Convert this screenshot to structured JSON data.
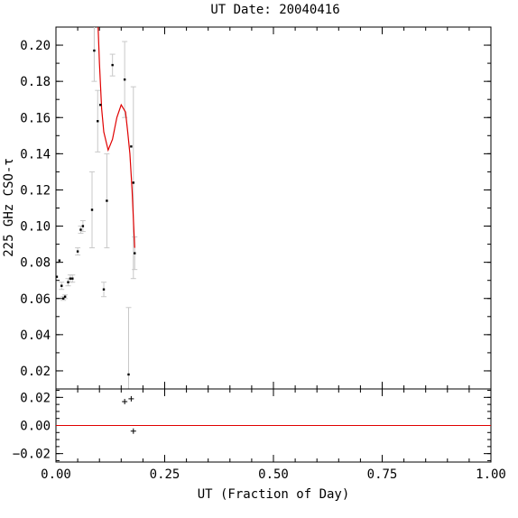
{
  "chart_data": [
    {
      "type": "scatter",
      "panel": "main",
      "title": "UT Date: 20040416",
      "xlabel": "",
      "ylabel": "225 GHz CSO-τ",
      "xlim": [
        0.0,
        1.0
      ],
      "ylim": [
        0.01,
        0.21
      ],
      "yticks": [
        0.02,
        0.04,
        0.06,
        0.08,
        0.1,
        0.12,
        0.14,
        0.16,
        0.18,
        0.2
      ],
      "ytick_labels": [
        "0.02",
        "0.04",
        "0.06",
        "0.08",
        "0.10",
        "0.12",
        "0.14",
        "0.16",
        "0.18",
        "0.20"
      ],
      "xticks": [
        0.0,
        0.25,
        0.5,
        0.75,
        1.0
      ],
      "series": [
        {
          "kind": "points_with_errorbars",
          "color": "#000000",
          "errorbar_color": "#c8c8c8",
          "points": [
            {
              "x": 0.002,
              "y": 0.072,
              "err": 0.0
            },
            {
              "x": 0.008,
              "y": 0.081,
              "err": 0.0
            },
            {
              "x": 0.013,
              "y": 0.067,
              "err": 0.002
            },
            {
              "x": 0.017,
              "y": 0.06,
              "err": 0.001
            },
            {
              "x": 0.021,
              "y": 0.061,
              "err": 0.001
            },
            {
              "x": 0.028,
              "y": 0.069,
              "err": 0.002
            },
            {
              "x": 0.033,
              "y": 0.071,
              "err": 0.002
            },
            {
              "x": 0.038,
              "y": 0.071,
              "err": 0.002
            },
            {
              "x": 0.05,
              "y": 0.086,
              "err": 0.002
            },
            {
              "x": 0.057,
              "y": 0.098,
              "err": 0.002
            },
            {
              "x": 0.062,
              "y": 0.1,
              "err": 0.003
            },
            {
              "x": 0.083,
              "y": 0.109,
              "err": 0.021
            },
            {
              "x": 0.088,
              "y": 0.197,
              "err": 0.017
            },
            {
              "x": 0.096,
              "y": 0.158,
              "err": 0.017
            },
            {
              "x": 0.102,
              "y": 0.167,
              "err": 0.0
            },
            {
              "x": 0.11,
              "y": 0.065,
              "err": 0.004
            },
            {
              "x": 0.117,
              "y": 0.114,
              "err": 0.026
            },
            {
              "x": 0.13,
              "y": 0.189,
              "err": 0.006
            },
            {
              "x": 0.158,
              "y": 0.181,
              "err": 0.021
            },
            {
              "x": 0.167,
              "y": 0.018,
              "err": 0.037
            },
            {
              "x": 0.173,
              "y": 0.144,
              "err": 0.0
            },
            {
              "x": 0.178,
              "y": 0.124,
              "err": 0.053
            },
            {
              "x": 0.181,
              "y": 0.085,
              "err": 0.009
            }
          ]
        },
        {
          "kind": "fit_line",
          "color": "#e00000",
          "x": [
            0.096,
            0.1,
            0.105,
            0.11,
            0.12,
            0.13,
            0.14,
            0.15,
            0.16,
            0.165,
            0.17,
            0.175,
            0.181
          ],
          "y": [
            0.216,
            0.19,
            0.165,
            0.152,
            0.142,
            0.148,
            0.16,
            0.167,
            0.163,
            0.152,
            0.14,
            0.12,
            0.088
          ]
        }
      ]
    },
    {
      "type": "scatter",
      "panel": "residuals",
      "title": "",
      "xlabel": "UT (Fraction of Day)",
      "ylabel": "",
      "xlim": [
        0.0,
        1.0
      ],
      "ylim": [
        -0.026,
        0.026
      ],
      "yticks": [
        -0.02,
        0.0,
        0.02
      ],
      "ytick_labels": [
        "−0.02",
        "0.00",
        "0.02"
      ],
      "xticks": [
        0.0,
        0.25,
        0.5,
        0.75,
        1.0
      ],
      "xtick_labels": [
        "0.00",
        "0.25",
        "0.50",
        "0.75",
        "1.00"
      ],
      "zero_line_color": "#e00000",
      "series": [
        {
          "kind": "plus_markers",
          "color": "#000000",
          "points": [
            {
              "x": 0.158,
              "y": 0.017
            },
            {
              "x": 0.173,
              "y": 0.019
            },
            {
              "x": 0.178,
              "y": -0.004
            }
          ]
        }
      ]
    }
  ]
}
